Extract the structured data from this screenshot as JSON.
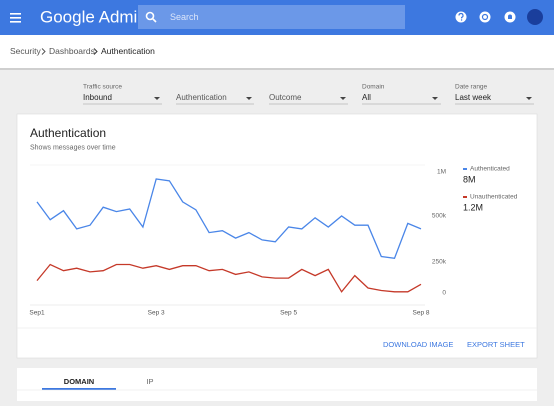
{
  "header": {
    "app_title": "Google Admin",
    "search_placeholder": "Search"
  },
  "breadcrumb": [
    "Security",
    "Dashboards",
    "Authentication"
  ],
  "filters": [
    {
      "label": "Traffic source",
      "value": "Inbound"
    },
    {
      "value": "Authentication"
    },
    {
      "value": "Outcome"
    },
    {
      "label": "Domain",
      "value": "All"
    },
    {
      "label": "Date range",
      "value": "Last week"
    }
  ],
  "card": {
    "actions": [
      "DOWNLOAD IMAGE",
      "EXPORT SHEET"
    ]
  },
  "chart_data": {
    "type": "line",
    "title": "Authentication",
    "subtitle": "Shows messages over time",
    "categories": [
      "Sep1",
      null,
      null,
      null,
      null,
      null,
      null,
      null,
      null,
      "Sep 3",
      null,
      null,
      null,
      null,
      null,
      null,
      null,
      null,
      null,
      "Sep 5",
      null,
      null,
      null,
      null,
      null,
      null,
      null,
      null,
      null,
      "Sep 8"
    ],
    "series": [
      {
        "name": "Authenticated",
        "total": "8M",
        "color": "#4a86e8",
        "values": [
          660000,
          480000,
          560000,
          430000,
          450000,
          600000,
          550000,
          580000,
          440000,
          920000,
          900000,
          660000,
          570000,
          410000,
          420000,
          380000,
          410000,
          370000,
          360000,
          440000,
          430000,
          490000,
          440000,
          500000,
          450000,
          450000,
          280000,
          270000,
          460000,
          430000
        ]
      },
      {
        "name": "Unauthenticated",
        "total": "1.2M",
        "color": "#c53929",
        "values": [
          100000,
          230000,
          180000,
          200000,
          170000,
          180000,
          230000,
          230000,
          200000,
          220000,
          190000,
          220000,
          220000,
          180000,
          190000,
          150000,
          170000,
          130000,
          120000,
          120000,
          190000,
          140000,
          190000,
          10000,
          140000,
          40000,
          20000,
          10000,
          10000,
          70000
        ]
      }
    ],
    "ylim": [
      0,
      1000000
    ],
    "yticks": [
      {
        "value": 1000000,
        "label": "1M"
      },
      {
        "value": 500000,
        "label": "500k"
      },
      {
        "value": 250000,
        "label": "250k"
      },
      0
    ],
    "grid": false
  },
  "tabs": [
    "DOMAIN",
    "IP"
  ]
}
